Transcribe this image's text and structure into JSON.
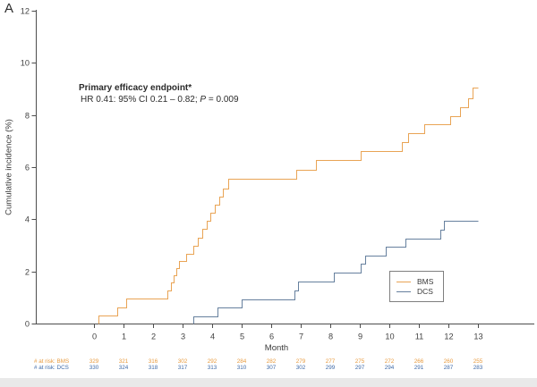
{
  "panel_label": "A",
  "colors": {
    "bms": "#E9A455",
    "dcs": "#66809E",
    "bms_text": "#E79A3E",
    "dcs_text": "#3E6AA8",
    "axis": "#4d4d4d",
    "text": "#424242"
  },
  "annotation": {
    "title": "Primary efficacy endpoint*",
    "detail_prefix": "HR 0.41: 95% CI 0.21 – 0.82; ",
    "p_label": "P",
    "p_value": " = 0.009"
  },
  "legend": {
    "items": [
      {
        "label": "BMS",
        "color": "#E9A455"
      },
      {
        "label": "DCS",
        "color": "#66809E"
      }
    ]
  },
  "chart_data": {
    "type": "line",
    "subtype": "step",
    "xlabel": "Month",
    "ylabel": "Cumulative incidence (%)",
    "xlim": [
      0,
      13
    ],
    "ylim": [
      0,
      12
    ],
    "xticks": [
      0,
      1,
      2,
      3,
      4,
      5,
      6,
      7,
      8,
      9,
      10,
      11,
      12,
      13
    ],
    "yticks": [
      0,
      2,
      4,
      6,
      8,
      10,
      12
    ],
    "grid": false,
    "legend_position": "right-middle",
    "series": [
      {
        "name": "BMS",
        "color": "#E9A455",
        "end_month": 13.0,
        "steps": [
          [
            0.15,
            0.31
          ],
          [
            0.8,
            0.62
          ],
          [
            1.1,
            0.95
          ],
          [
            2.48,
            1.28
          ],
          [
            2.6,
            1.58
          ],
          [
            2.7,
            1.86
          ],
          [
            2.78,
            2.13
          ],
          [
            2.87,
            2.4
          ],
          [
            3.12,
            2.68
          ],
          [
            3.37,
            2.98
          ],
          [
            3.5,
            3.3
          ],
          [
            3.66,
            3.62
          ],
          [
            3.81,
            3.93
          ],
          [
            3.94,
            4.25
          ],
          [
            4.09,
            4.56
          ],
          [
            4.23,
            4.87
          ],
          [
            4.37,
            5.18
          ],
          [
            4.56,
            5.56
          ],
          [
            6.85,
            5.9
          ],
          [
            7.52,
            6.26
          ],
          [
            9.02,
            6.6
          ],
          [
            10.43,
            6.95
          ],
          [
            10.63,
            7.3
          ],
          [
            11.18,
            7.64
          ],
          [
            12.05,
            7.96
          ],
          [
            12.4,
            8.3
          ],
          [
            12.66,
            8.64
          ],
          [
            12.82,
            9.05
          ]
        ]
      },
      {
        "name": "DCS",
        "color": "#66809E",
        "end_month": 13.0,
        "steps": [
          [
            3.36,
            0.28
          ],
          [
            4.19,
            0.62
          ],
          [
            5.0,
            0.92
          ],
          [
            6.78,
            1.26
          ],
          [
            6.92,
            1.6
          ],
          [
            8.11,
            1.95
          ],
          [
            9.04,
            2.28
          ],
          [
            9.17,
            2.61
          ],
          [
            9.88,
            2.95
          ],
          [
            10.54,
            3.27
          ],
          [
            11.72,
            3.6
          ],
          [
            11.84,
            3.95
          ]
        ]
      }
    ]
  },
  "at_risk": {
    "rows": [
      {
        "label": "# at risk: BMS",
        "color": "#E79A3E",
        "values": [
          "329",
          "321",
          "316",
          "302",
          "292",
          "284",
          "282",
          "279",
          "277",
          "275",
          "272",
          "266",
          "260",
          "255"
        ]
      },
      {
        "label": "# at risk: DCS",
        "color": "#3E6AA8",
        "values": [
          "330",
          "324",
          "318",
          "317",
          "313",
          "310",
          "307",
          "302",
          "299",
          "297",
          "294",
          "291",
          "287",
          "283"
        ]
      }
    ]
  }
}
